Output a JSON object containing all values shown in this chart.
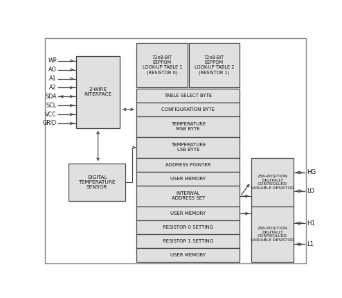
{
  "bg_color": "#ffffff",
  "box_face": "#e0e0e0",
  "box_edge": "#444444",
  "text_color": "#111111",
  "left_pins": [
    "WP",
    "AO",
    "A1",
    "A2",
    "SDA",
    "SCL",
    "VCC",
    "GRID"
  ],
  "sda_bidirectional": true,
  "right_pins_top": [
    "HG",
    "LO"
  ],
  "right_pins_bot": [
    "H1",
    "L1"
  ],
  "wire_interface_label": "2-WIRE\nINTERFACE",
  "digital_temp_label": "DIGITAL\nTEMPERATURE\nSENSOR",
  "eeprom1_label": "72x8-BIT\nEEPPOM\nLOOK-UP TABLE 1\n(RESISTOR 0)",
  "eeprom2_label": "72x8-BIT\nEEPPOM\nLOOK-UP TABLE 2\n(RESISTOR 1)",
  "var_res_label": "256-POSITION\nDIGITALLY\nCONTROLLED\nVARIABLE RESISTOR",
  "row_labels": [
    "TABLE SELECT BYTE",
    "CONFIGURATION BYTE",
    "TEMPERATURE\nMSB BYTE",
    "TEMPERATURE\nLSB BYTE",
    "ADDRESS POINTER",
    "USER MEMORY",
    "INTERNAL\nADDRESS SET",
    "USER MEMORY",
    "RESISTOR 0 SETTING",
    "RESISTOR 1 SETTING",
    "USER MEMORY"
  ],
  "row_heights": [
    1.0,
    1.0,
    1.5,
    1.5,
    1.0,
    1.0,
    1.5,
    1.0,
    1.0,
    1.0,
    1.0
  ]
}
